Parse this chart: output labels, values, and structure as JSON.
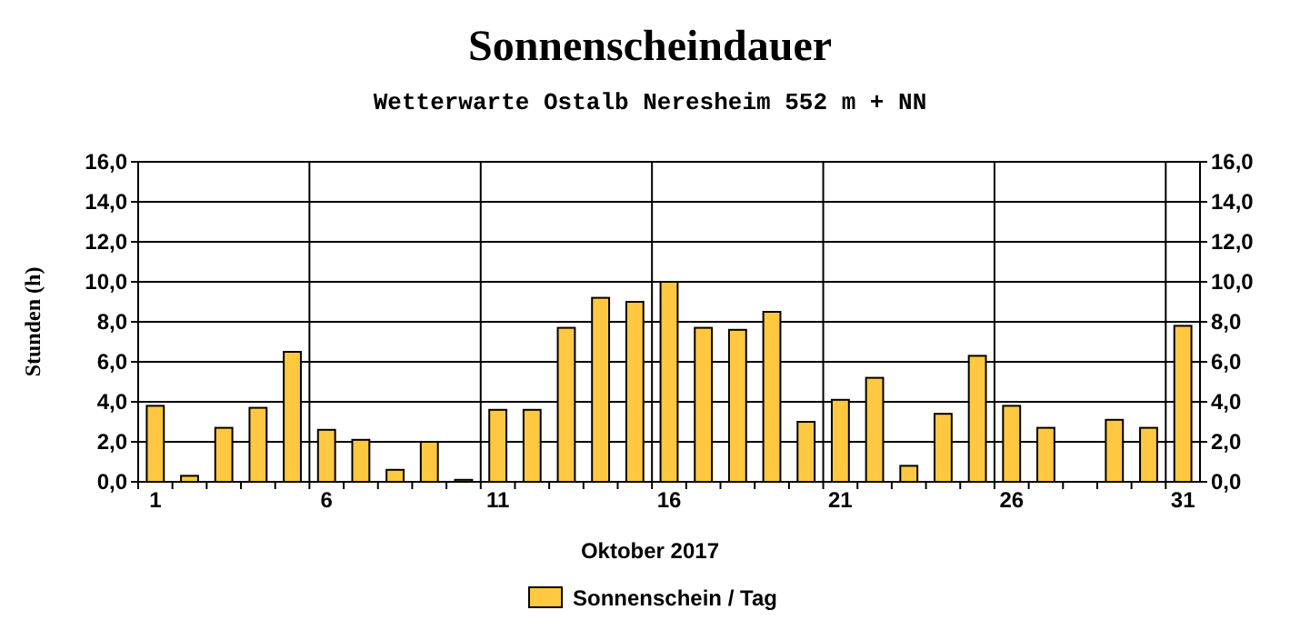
{
  "chart_data": {
    "type": "bar",
    "title": "Sonnenscheindauer",
    "subtitle": "Wetterwarte Ostalb Neresheim 552 m + NN",
    "xlabel": "Oktober 2017",
    "ylabel": "Stunden  (h)",
    "categories": [
      "1",
      null,
      null,
      null,
      null,
      "6",
      null,
      null,
      null,
      null,
      "11",
      null,
      null,
      null,
      null,
      "16",
      null,
      null,
      null,
      null,
      "21",
      null,
      null,
      null,
      null,
      "26",
      null,
      null,
      null,
      null,
      "31"
    ],
    "series": [
      {
        "name": "Sonnenschein / Tag",
        "color": "#ffc840",
        "values": [
          3.8,
          0.3,
          2.7,
          3.7,
          6.5,
          2.6,
          2.1,
          0.6,
          2.0,
          0.1,
          3.6,
          3.6,
          7.7,
          9.2,
          9.0,
          10.0,
          7.7,
          7.6,
          8.5,
          3.0,
          4.1,
          5.2,
          0.8,
          3.4,
          6.3,
          3.8,
          2.7,
          0,
          3.1,
          2.7,
          7.8
        ]
      }
    ],
    "ylim": [
      0,
      16
    ],
    "yticks": [
      {
        "value": 0,
        "label": "0,0"
      },
      {
        "value": 2,
        "label": "2,0"
      },
      {
        "value": 4,
        "label": "4,0"
      },
      {
        "value": 6,
        "label": "6,0"
      },
      {
        "value": 8,
        "label": "8,0"
      },
      {
        "value": 10,
        "label": "10,0"
      },
      {
        "value": 12,
        "label": "12,0"
      },
      {
        "value": 14,
        "label": "14,0"
      },
      {
        "value": 16,
        "label": "16,0"
      }
    ],
    "y2lim": [
      0,
      16
    ],
    "y2ticks": [
      {
        "value": 0,
        "label": "0,0"
      },
      {
        "value": 2,
        "label": "2,0"
      },
      {
        "value": 4,
        "label": "4,0"
      },
      {
        "value": 6,
        "label": "6,0"
      },
      {
        "value": 8,
        "label": "8,0"
      },
      {
        "value": 10,
        "label": "10,0"
      },
      {
        "value": 12,
        "label": "12,0"
      },
      {
        "value": 14,
        "label": "14,0"
      },
      {
        "value": 16,
        "label": "16,0"
      }
    ],
    "grid": true,
    "legend": "bottom"
  }
}
